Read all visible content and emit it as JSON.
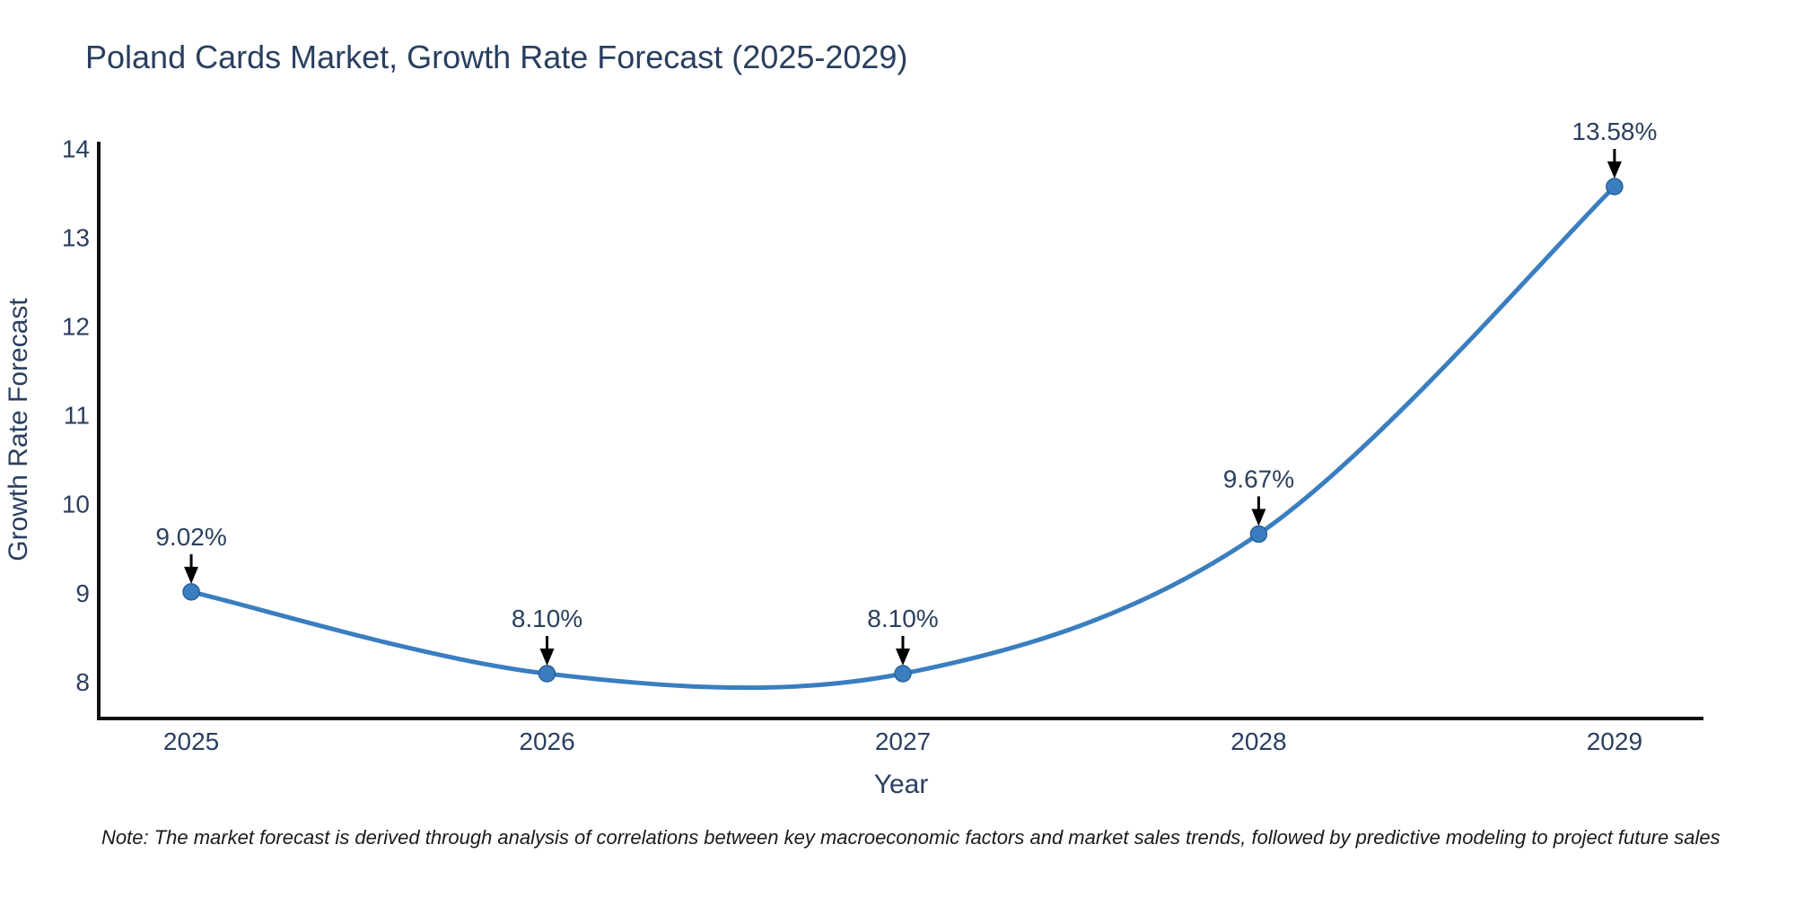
{
  "title": "Poland Cards Market, Growth Rate Forecast (2025-2029)",
  "note": "Note: The market forecast is derived through analysis of correlations between key macroeconomic factors and market sales trends, followed by predictive modeling to project future sales",
  "chart_data": {
    "type": "line",
    "title": "Poland Cards Market, Growth Rate Forecast (2025-2029)",
    "xlabel": "Year",
    "ylabel": "Growth Rate Forecast",
    "x": [
      2025,
      2026,
      2027,
      2028,
      2029
    ],
    "values": [
      9.02,
      8.1,
      8.1,
      9.67,
      13.58
    ],
    "labels": [
      "9.02%",
      "8.10%",
      "8.10%",
      "9.67%",
      "13.58%"
    ],
    "xticks": [
      2025,
      2026,
      2027,
      2028,
      2029
    ],
    "yticks": [
      8,
      9,
      10,
      11,
      12,
      13,
      14
    ],
    "xlim": [
      2024.74,
      2029.25
    ],
    "ylim": [
      7.595,
      14.085
    ],
    "grid": false,
    "legend": "none",
    "line_shape": "spline",
    "colors": {
      "line": "#3a7ebf",
      "marker": "#3a7ebf",
      "marker_edge": "#2a6098",
      "axis": "#111111",
      "chart_text": "#2a3f5f",
      "annotation_arrow": "#000000",
      "note_text": "#1a1a1a",
      "background": "#ffffff"
    }
  }
}
